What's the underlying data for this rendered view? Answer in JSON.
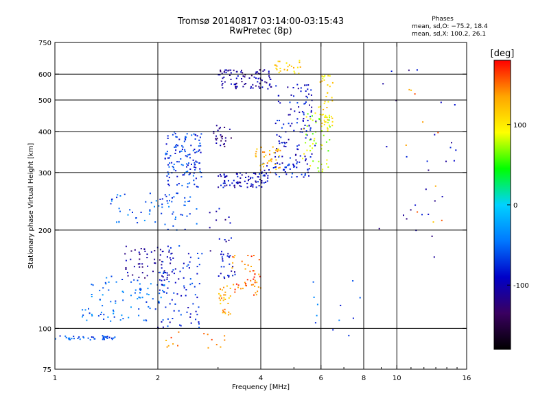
{
  "chart_data": {
    "type": "scatter",
    "title": "Tromsø 20140817 03:14:00-03:15:43",
    "subtitle": "RwPretec (8p)",
    "xlabel": "Frequency [MHz]",
    "ylabel": "Stationary phase Virtual Height [km]",
    "xscale": "log",
    "yscale": "log",
    "xlim": [
      1,
      16
    ],
    "ylim": [
      75,
      750
    ],
    "xticks": [
      1,
      2,
      4,
      6,
      8,
      10,
      16
    ],
    "yticks": [
      75,
      100,
      200,
      300,
      400,
      500,
      600,
      750
    ],
    "xgrid": [
      2,
      4,
      6,
      8,
      10
    ],
    "ygrid": [
      100,
      200,
      300,
      400,
      500,
      600
    ],
    "grid": true,
    "stats": {
      "heading": "Phases",
      "line_o": "mean, sd,O: −75.2, 18.4",
      "line_x": "mean, sd,X: 100.2, 26.1"
    },
    "colorbar": {
      "label": "[deg]",
      "min": -180,
      "max": 180,
      "ticks": [
        100,
        0,
        -100
      ],
      "palette": [
        "#000000",
        "#3a0060",
        "#0000c8",
        "#0078ff",
        "#00d2ff",
        "#00ff00",
        "#ffff00",
        "#ffa500",
        "#ff0000"
      ]
    },
    "clusters": [
      {
        "x0": 1.0,
        "x1": 1.5,
        "h0": 92,
        "h1": 95,
        "n": 40,
        "phase": -60
      },
      {
        "x0": 1.2,
        "x1": 2.1,
        "h0": 105,
        "h1": 145,
        "n": 90,
        "phase": -50
      },
      {
        "x0": 1.6,
        "x1": 2.2,
        "h0": 140,
        "h1": 180,
        "n": 60,
        "phase": -110
      },
      {
        "x0": 2.0,
        "x1": 2.7,
        "h0": 100,
        "h1": 180,
        "n": 90,
        "phase": -80
      },
      {
        "x0": 2.1,
        "x1": 2.7,
        "h0": 270,
        "h1": 400,
        "n": 130,
        "phase": -70
      },
      {
        "x0": 1.45,
        "x1": 2.0,
        "h0": 210,
        "h1": 260,
        "n": 30,
        "phase": -55
      },
      {
        "x0": 2.0,
        "x1": 2.6,
        "h0": 200,
        "h1": 260,
        "n": 40,
        "phase": -60
      },
      {
        "x0": 3.0,
        "x1": 4.2,
        "h0": 270,
        "h1": 300,
        "n": 80,
        "phase": -95
      },
      {
        "x0": 4.0,
        "x1": 5.6,
        "h0": 290,
        "h1": 320,
        "n": 50,
        "phase": -80
      },
      {
        "x0": 4.4,
        "x1": 5.8,
        "h0": 320,
        "h1": 560,
        "n": 110,
        "phase": -90
      },
      {
        "x0": 3.0,
        "x1": 4.3,
        "h0": 540,
        "h1": 620,
        "n": 90,
        "phase": -110
      },
      {
        "x0": 3.8,
        "x1": 4.6,
        "h0": 300,
        "h1": 360,
        "n": 40,
        "phase": 130
      },
      {
        "x0": 5.3,
        "x1": 6.4,
        "h0": 300,
        "h1": 460,
        "n": 60,
        "phase": 80
      },
      {
        "x0": 5.9,
        "x1": 6.5,
        "h0": 400,
        "h1": 600,
        "n": 40,
        "phase": 110
      },
      {
        "x0": 3.0,
        "x1": 3.3,
        "h0": 110,
        "h1": 135,
        "n": 30,
        "phase": 130
      },
      {
        "x0": 3.3,
        "x1": 4.0,
        "h0": 125,
        "h1": 170,
        "n": 50,
        "phase": 150
      },
      {
        "x0": 3.0,
        "x1": 3.4,
        "h0": 140,
        "h1": 170,
        "n": 25,
        "phase": -90
      },
      {
        "x0": 2.9,
        "x1": 3.3,
        "h0": 360,
        "h1": 420,
        "n": 25,
        "phase": -120
      },
      {
        "x0": 4.4,
        "x1": 5.3,
        "h0": 600,
        "h1": 660,
        "n": 25,
        "phase": 110
      },
      {
        "x0": 2.8,
        "x1": 3.3,
        "h0": 170,
        "h1": 240,
        "n": 15,
        "phase": -100
      },
      {
        "x0": 2.0,
        "x1": 3.2,
        "h0": 86,
        "h1": 100,
        "n": 15,
        "phase": 140
      },
      {
        "x0": 5.5,
        "x1": 8.0,
        "h0": 95,
        "h1": 140,
        "n": 12,
        "phase": -60
      },
      {
        "x0": 8.5,
        "x1": 15.0,
        "h0": 160,
        "h1": 620,
        "n": 30,
        "phase": -100
      },
      {
        "x0": 10.5,
        "x1": 14.0,
        "h0": 200,
        "h1": 600,
        "n": 10,
        "phase": 140
      }
    ]
  }
}
